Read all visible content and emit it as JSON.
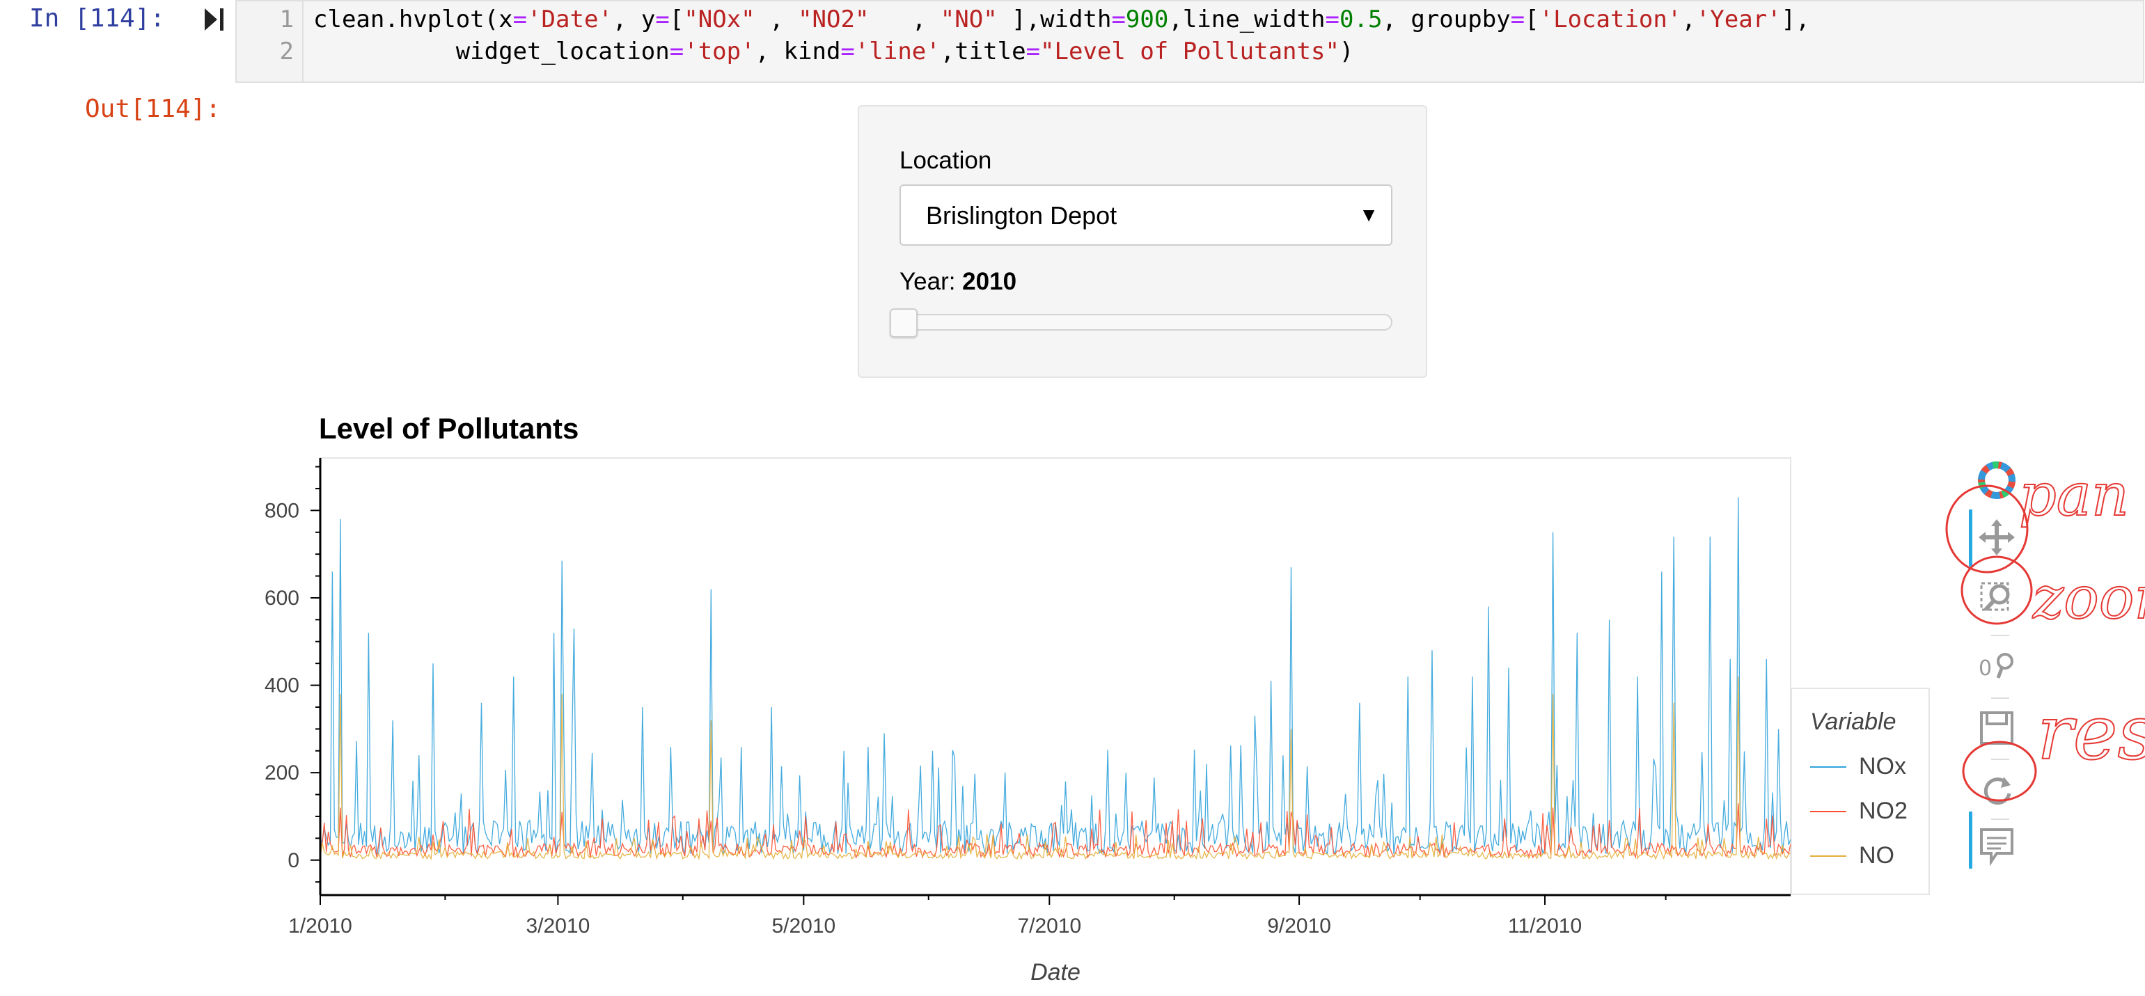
{
  "notebook": {
    "in_prompt": "In [114]:",
    "out_prompt": "Out[114]:",
    "line_numbers": [
      "1",
      "2"
    ]
  },
  "code": {
    "line1_parts": [
      {
        "t": "clean.hvplot(x",
        "c": ""
      },
      {
        "t": "=",
        "c": "op"
      },
      {
        "t": "'Date'",
        "c": "str"
      },
      {
        "t": ", y",
        "c": ""
      },
      {
        "t": "=",
        "c": "op"
      },
      {
        "t": "[",
        "c": ""
      },
      {
        "t": "\"NOx\"",
        "c": "str"
      },
      {
        "t": " , ",
        "c": ""
      },
      {
        "t": "\"NO2\"",
        "c": "str"
      },
      {
        "t": "   , ",
        "c": ""
      },
      {
        "t": "\"NO\"",
        "c": "str"
      },
      {
        "t": " ],width",
        "c": ""
      },
      {
        "t": "=",
        "c": "op"
      },
      {
        "t": "900",
        "c": "num"
      },
      {
        "t": ",line_width",
        "c": ""
      },
      {
        "t": "=",
        "c": "op"
      },
      {
        "t": "0.5",
        "c": "num"
      },
      {
        "t": ", groupby",
        "c": ""
      },
      {
        "t": "=",
        "c": "op"
      },
      {
        "t": "[",
        "c": ""
      },
      {
        "t": "'Location'",
        "c": "str"
      },
      {
        "t": ",",
        "c": ""
      },
      {
        "t": "'Year'",
        "c": "str"
      },
      {
        "t": "],",
        "c": ""
      }
    ],
    "line2_parts": [
      {
        "t": "          widget_location",
        "c": ""
      },
      {
        "t": "=",
        "c": "op"
      },
      {
        "t": "'top'",
        "c": "str"
      },
      {
        "t": ", kind",
        "c": ""
      },
      {
        "t": "=",
        "c": "op"
      },
      {
        "t": "'line'",
        "c": "str"
      },
      {
        "t": ",title",
        "c": ""
      },
      {
        "t": "=",
        "c": "op"
      },
      {
        "t": "\"Level of Pollutants\"",
        "c": "str"
      },
      {
        "t": ")",
        "c": ""
      }
    ]
  },
  "widgets": {
    "location_label": "Location",
    "location_value": "Brislington Depot",
    "select_arrow": "▼",
    "year_label": "Year: ",
    "year_value": "2010",
    "year_slider_fraction": 0.0
  },
  "chart_data": {
    "type": "line",
    "title": "Level of Pollutants",
    "xlabel": "Date",
    "ylabel": "",
    "x_tick_labels": [
      "1/2010",
      "3/2010",
      "5/2010",
      "7/2010",
      "9/2010",
      "11/2010"
    ],
    "y_tick_labels": [
      "0",
      "200",
      "400",
      "600",
      "800"
    ],
    "y_ticks": [
      0,
      200,
      400,
      600,
      800
    ],
    "ylim": [
      -80,
      920
    ],
    "xlim_days": [
      0,
      365
    ],
    "x_tick_days": [
      0,
      59,
      120,
      181,
      243,
      304
    ],
    "legend_title": "Variable",
    "legend_position": "right",
    "series": [
      {
        "name": "NOx",
        "color": "#30a2da",
        "peaks": [
          [
            3,
            660
          ],
          [
            5,
            780
          ],
          [
            12,
            520
          ],
          [
            18,
            320
          ],
          [
            28,
            450
          ],
          [
            40,
            360
          ],
          [
            48,
            420
          ],
          [
            58,
            520
          ],
          [
            60,
            685
          ],
          [
            63,
            530
          ],
          [
            80,
            350
          ],
          [
            97,
            620
          ],
          [
            112,
            350
          ],
          [
            130,
            250
          ],
          [
            140,
            290
          ],
          [
            152,
            250
          ],
          [
            170,
            200
          ],
          [
            185,
            180
          ],
          [
            200,
            200
          ],
          [
            220,
            220
          ],
          [
            232,
            330
          ],
          [
            236,
            410
          ],
          [
            241,
            670
          ],
          [
            258,
            360
          ],
          [
            270,
            420
          ],
          [
            276,
            480
          ],
          [
            286,
            420
          ],
          [
            290,
            580
          ],
          [
            295,
            440
          ],
          [
            306,
            750
          ],
          [
            312,
            520
          ],
          [
            320,
            550
          ],
          [
            327,
            420
          ],
          [
            333,
            660
          ],
          [
            336,
            740
          ],
          [
            345,
            740
          ],
          [
            350,
            460
          ],
          [
            352,
            830
          ],
          [
            359,
            460
          ],
          [
            362,
            300
          ]
        ],
        "baseline": 70
      },
      {
        "name": "NO2",
        "color": "#fc4f30",
        "peaks": [
          [
            5,
            120
          ],
          [
            60,
            110
          ],
          [
            97,
            90
          ],
          [
            241,
            110
          ],
          [
            306,
            120
          ],
          [
            352,
            130
          ]
        ],
        "baseline": 30
      },
      {
        "name": "NO",
        "color": "#e5ae38",
        "peaks": [
          [
            5,
            380
          ],
          [
            60,
            380
          ],
          [
            97,
            320
          ],
          [
            241,
            300
          ],
          [
            306,
            380
          ],
          [
            336,
            360
          ],
          [
            352,
            420
          ]
        ],
        "baseline": 15
      }
    ]
  },
  "toolbar": {
    "logo_icon": "bokeh-logo-icon",
    "tools": [
      "pan-icon",
      "box-zoom-icon",
      "wheel-zoom-icon",
      "save-icon",
      "reset-icon",
      "hover-icon"
    ]
  },
  "annotations": {
    "pan": "pan",
    "zoom": "zoom",
    "reset": "reset"
  }
}
